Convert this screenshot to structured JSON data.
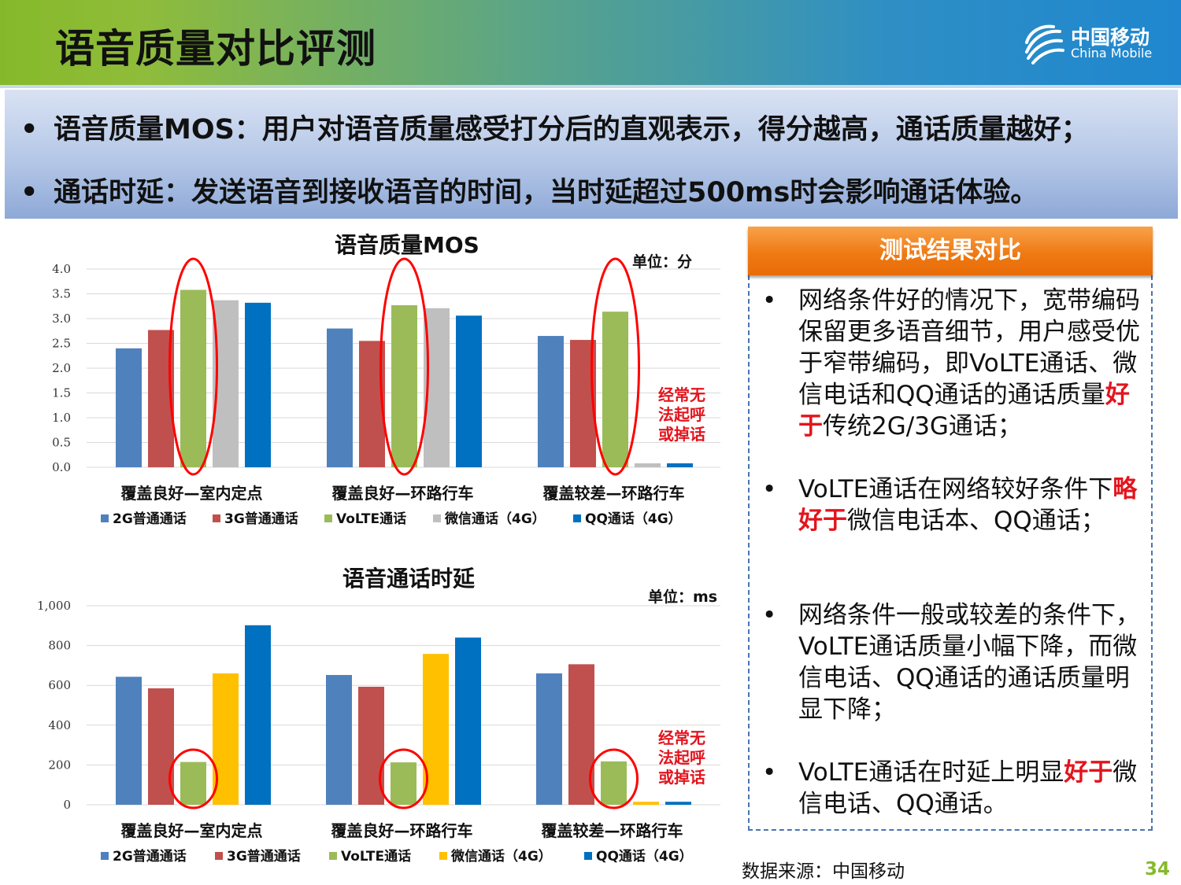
{
  "header": {
    "title": "语音质量对比评测"
  },
  "logo": {
    "cn": "中国移动",
    "en": "China Mobile"
  },
  "banner": {
    "line1": "语音质量MOS：用户对语音质量感受打分后的直观表示，得分越高，通话质量越好；",
    "line2": "通话时延：发送语音到接收语音的时间，当时延超过500ms时会影响通话体验。",
    "bullet": "•"
  },
  "chart_data": [
    {
      "type": "bar",
      "title": "语音质量MOS",
      "unit": "单位：分",
      "categories": [
        "覆盖良好—室内定点",
        "覆盖良好—环路行车",
        "覆盖较差—环路行车"
      ],
      "series": [
        {
          "name": "2G普通通话",
          "color": "#4f81bd",
          "values": [
            2.4,
            2.8,
            2.65
          ]
        },
        {
          "name": "3G普通通话",
          "color": "#c0504d",
          "values": [
            2.77,
            2.55,
            2.57
          ]
        },
        {
          "name": "VoLTE通话",
          "color": "#9bbb59",
          "values": [
            3.58,
            3.27,
            3.14
          ]
        },
        {
          "name": "微信通话（4G）",
          "color": "#bfbfbf",
          "values": [
            3.37,
            3.21,
            0.08
          ]
        },
        {
          "name": "QQ通话（4G）",
          "color": "#0070c0",
          "values": [
            3.32,
            3.06,
            0.08
          ]
        }
      ],
      "ylim": [
        0,
        4.0
      ],
      "yticks": [
        "0.0",
        "0.5",
        "1.0",
        "1.5",
        "2.0",
        "2.5",
        "3.0",
        "3.5",
        "4.0"
      ],
      "grid": true,
      "legend": "bottom",
      "annotation": [
        "经常无",
        "法起呼",
        "或掉话"
      ]
    },
    {
      "type": "bar",
      "title": "语音通话时延",
      "unit": "单位：ms",
      "categories": [
        "覆盖良好—室内定点",
        "覆盖良好—环路行车",
        "覆盖较差—环路行车"
      ],
      "series": [
        {
          "name": "2G普通通话",
          "color": "#4f81bd",
          "values": [
            643,
            652,
            660
          ]
        },
        {
          "name": "3G普通通话",
          "color": "#c0504d",
          "values": [
            585,
            593,
            706
          ]
        },
        {
          "name": "VoLTE通话",
          "color": "#9bbb59",
          "values": [
            215,
            213,
            218
          ]
        },
        {
          "name": "微信通话（4G）",
          "color": "#ffc000",
          "values": [
            660,
            758,
            15
          ]
        },
        {
          "name": "QQ通话（4G）",
          "color": "#0070c0",
          "values": [
            902,
            840,
            15
          ]
        }
      ],
      "ylim": [
        0,
        1000
      ],
      "yticks": [
        "0",
        "200",
        "400",
        "600",
        "800",
        "1,000"
      ],
      "grid": true,
      "legend": "bottom",
      "annotation": [
        "经常无",
        "法起呼",
        "或掉话"
      ]
    }
  ],
  "side": {
    "header": "测试结果对比",
    "bullet": "•",
    "p1a": "网络条件好的情况下，宽带编码保留更多语音细节，用户感受优于窄带编码，即VoLTE通话、微信电话和QQ通话的通话质量",
    "p1b": "好于",
    "p1c": "传统2G/3G通话；",
    "p2a": "VoLTE通话在网络较好条件下",
    "p2b": "略好于",
    "p2c": "微信电话本、QQ通话；",
    "p3": "网络条件一般或较差的条件下，VoLTE通话质量小幅下降，而微信电话、QQ通话的通话质量明显下降；",
    "p4a": "VoLTE通话在时延上明显",
    "p4b": "好于",
    "p4c": "微信电话、QQ通话。"
  },
  "footer": {
    "source": "数据来源：中国移动",
    "page": "34"
  },
  "colors": {
    "accent_green": "#86b92a",
    "highlight_red": "#e3141d",
    "orange": "#ef7a13"
  }
}
